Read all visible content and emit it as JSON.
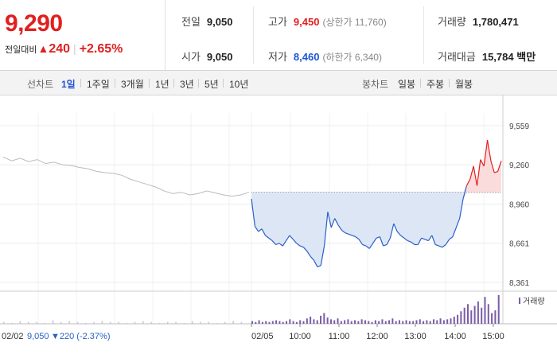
{
  "header": {
    "price": "9,290",
    "change_label": "전일대비",
    "change_arrow": "▲",
    "change_amount": "240",
    "change_percent": "+2.65%",
    "prev_close_label": "전일",
    "prev_close": "9,050",
    "open_label": "시가",
    "open": "9,050",
    "high_label": "고가",
    "high": "9,450",
    "upper_limit": "(상한가 11,760)",
    "low_label": "저가",
    "low": "8,460",
    "lower_limit": "(하한가 6,340)",
    "volume_label": "거래량",
    "volume": "1,780,471",
    "value_label": "거래대금",
    "value": "15,784",
    "value_unit": "백만"
  },
  "tabs": {
    "line_label": "선차트",
    "line_items": [
      "1일",
      "1주일",
      "3개월",
      "1년",
      "3년",
      "5년",
      "10년"
    ],
    "selected": "1일",
    "candle_label": "봉차트",
    "candle_items": [
      "일봉",
      "주봉",
      "월봉"
    ]
  },
  "chart_data": {
    "type": "line",
    "prev_day": {
      "date": "02/02",
      "close": "9,050",
      "change": "▼220 (-2.37%)"
    },
    "today": {
      "date": "02/05"
    },
    "y_ticks": [
      "9,559",
      "9,260",
      "8,960",
      "8,661",
      "8,361"
    ],
    "y_tick_values": [
      9559,
      9260,
      8960,
      8661,
      8361
    ],
    "x_ticks": [
      "02/02",
      "02/05",
      "10:00",
      "11:00",
      "12:00",
      "13:00",
      "14:00",
      "15:00"
    ],
    "baseline": 9050,
    "ylim": [
      8361,
      9559
    ],
    "volume_label": "거래량",
    "colors": {
      "up": "#e02020",
      "down": "#2a5fc9",
      "prev": "#bbbbbb",
      "fill_down": "#dde6f5",
      "fill_up": "#fbdcdc",
      "volume": "#7a5ca8"
    },
    "prev_series": [
      9320,
      9290,
      9310,
      9285,
      9300,
      9270,
      9280,
      9260,
      9255,
      9240,
      9230,
      9210,
      9200,
      9195,
      9180,
      9150,
      9130,
      9110,
      9090,
      9060,
      9040,
      9050,
      9030,
      9040,
      9060,
      9045,
      9030,
      9020,
      9030,
      9050
    ],
    "today_series": [
      9000,
      8790,
      8750,
      8770,
      8720,
      8700,
      8680,
      8650,
      8660,
      8640,
      8680,
      8720,
      8690,
      8660,
      8640,
      8630,
      8600,
      8560,
      8530,
      8480,
      8490,
      8640,
      8900,
      8780,
      8850,
      8800,
      8760,
      8740,
      8730,
      8720,
      8710,
      8690,
      8650,
      8640,
      8620,
      8660,
      8700,
      8710,
      8640,
      8650,
      8700,
      8810,
      8750,
      8720,
      8700,
      8680,
      8670,
      8650,
      8650,
      8700,
      8690,
      8680,
      8720,
      8650,
      8640,
      8630,
      8650,
      8690,
      8710,
      8780,
      8850,
      9000,
      9100,
      9150,
      9250,
      9100,
      9300,
      9250,
      9450,
      9290,
      9200,
      9210,
      9290
    ],
    "volume_prev": [
      2,
      1,
      3,
      2,
      2,
      1,
      4,
      2,
      3,
      2,
      1,
      2,
      3,
      2,
      2,
      1,
      2,
      3,
      2,
      1,
      2,
      2,
      1,
      3,
      2,
      2,
      1,
      2,
      3,
      2
    ],
    "volume_today": [
      3,
      2,
      4,
      2,
      3,
      2,
      3,
      4,
      3,
      2,
      3,
      5,
      3,
      2,
      4,
      3,
      6,
      8,
      5,
      4,
      9,
      12,
      7,
      5,
      4,
      6,
      3,
      4,
      5,
      3,
      4,
      3,
      5,
      4,
      3,
      2,
      4,
      3,
      5,
      3,
      4,
      6,
      3,
      4,
      3,
      4,
      3,
      3,
      4,
      5,
      3,
      4,
      3,
      5,
      4,
      6,
      4,
      5,
      6,
      8,
      10,
      14,
      18,
      22,
      15,
      20,
      25,
      18,
      30,
      22,
      12,
      15,
      32
    ]
  }
}
